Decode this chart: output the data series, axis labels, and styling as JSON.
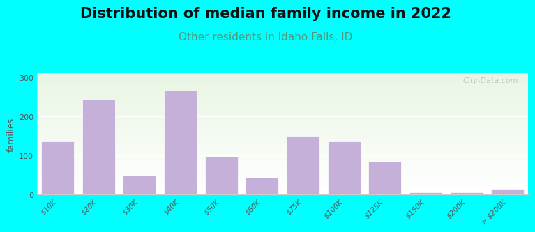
{
  "title": "Distribution of median family income in 2022",
  "subtitle": "Other residents in Idaho Falls, ID",
  "ylabel": "families",
  "categories": [
    "$10K",
    "$20K",
    "$30K",
    "$40K",
    "$50K",
    "$60K",
    "$75K",
    "$100K",
    "$125K",
    "$150K",
    "$200K",
    "> $200K"
  ],
  "values": [
    135,
    245,
    48,
    265,
    97,
    42,
    150,
    135,
    83,
    5,
    5,
    15
  ],
  "bar_color": "#c4b0d8",
  "bg_color": "#00ffff",
  "title_fontsize": 15,
  "subtitle_fontsize": 11,
  "subtitle_color": "#4a9a7a",
  "yticks": [
    0,
    100,
    200,
    300
  ],
  "ylim": [
    0,
    310
  ],
  "watermark": "City-Data.com"
}
